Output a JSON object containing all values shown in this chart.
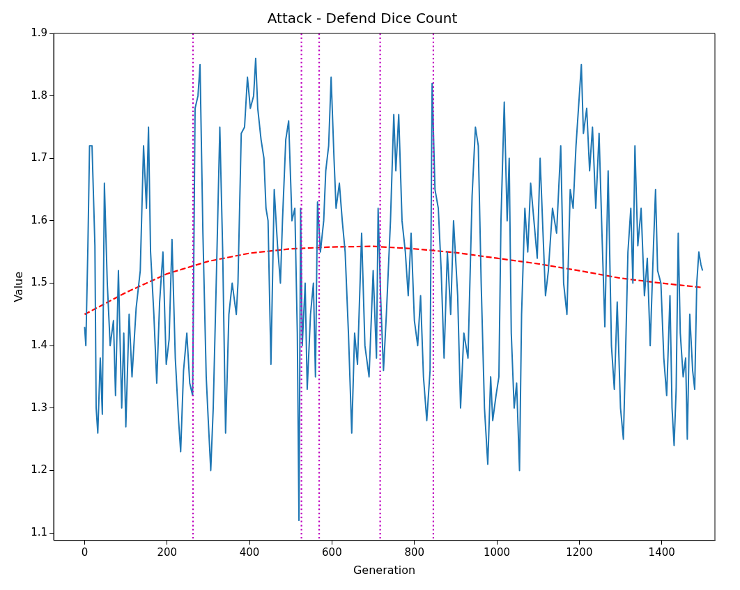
{
  "chart_data": {
    "type": "line",
    "title": "Attack - Defend Dice Count",
    "xlabel": "Generation",
    "ylabel": "Value",
    "xlim": [
      -75,
      1529
    ],
    "xticks": [
      0,
      200,
      400,
      600,
      800,
      1000,
      1200,
      1400
    ],
    "ylim": [
      1.088,
      1.9
    ],
    "yticks": [
      1.1,
      1.2,
      1.3,
      1.4,
      1.5,
      1.6,
      1.7,
      1.8,
      1.9
    ],
    "grid": false,
    "legend": false,
    "marker": "none",
    "series": [
      {
        "color": "#1f77b4",
        "line_style": "solid",
        "x": [
          0,
          3,
          8,
          12,
          18,
          25,
          28,
          32,
          38,
          43,
          48,
          55,
          62,
          70,
          75,
          82,
          90,
          95,
          100,
          108,
          115,
          125,
          135,
          143,
          150,
          155,
          160,
          168,
          175,
          182,
          190,
          198,
          205,
          212,
          220,
          228,
          233,
          240,
          248,
          255,
          262,
          268,
          275,
          280,
          287,
          295,
          300,
          306,
          312,
          320,
          328,
          335,
          342,
          350,
          358,
          368,
          372,
          380,
          388,
          395,
          402,
          410,
          415,
          420,
          428,
          435,
          440,
          445,
          452,
          460,
          468,
          475,
          480,
          488,
          495,
          503,
          510,
          516,
          520,
          524,
          528,
          535,
          540,
          548,
          555,
          560,
          565,
          572,
          580,
          585,
          592,
          598,
          605,
          610,
          618,
          625,
          632,
          640,
          648,
          655,
          662,
          672,
          680,
          690,
          700,
          708,
          712,
          718,
          725,
          732,
          742,
          750,
          755,
          762,
          770,
          778,
          785,
          792,
          800,
          808,
          815,
          822,
          830,
          838,
          843,
          850,
          858,
          865,
          872,
          880,
          888,
          895,
          905,
          912,
          920,
          930,
          940,
          948,
          955,
          962,
          970,
          978,
          985,
          990,
          998,
          1005,
          1010,
          1018,
          1025,
          1030,
          1035,
          1042,
          1048,
          1055,
          1060,
          1068,
          1075,
          1082,
          1090,
          1098,
          1105,
          1112,
          1118,
          1125,
          1135,
          1145,
          1155,
          1162,
          1170,
          1178,
          1185,
          1192,
          1200,
          1205,
          1210,
          1218,
          1225,
          1232,
          1240,
          1248,
          1255,
          1262,
          1270,
          1278,
          1285,
          1292,
          1300,
          1307,
          1312,
          1318,
          1325,
          1330,
          1335,
          1342,
          1350,
          1358,
          1365,
          1372,
          1380,
          1385,
          1390,
          1398,
          1405,
          1412,
          1420,
          1425,
          1430,
          1435,
          1440,
          1445,
          1452,
          1458,
          1462,
          1468,
          1475,
          1480,
          1485,
          1490,
          1495,
          1499
        ],
        "values": [
          1.43,
          1.4,
          1.56,
          1.72,
          1.72,
          1.56,
          1.3,
          1.26,
          1.38,
          1.29,
          1.66,
          1.5,
          1.4,
          1.44,
          1.32,
          1.52,
          1.3,
          1.42,
          1.27,
          1.45,
          1.35,
          1.46,
          1.52,
          1.72,
          1.62,
          1.75,
          1.55,
          1.45,
          1.34,
          1.47,
          1.55,
          1.37,
          1.41,
          1.57,
          1.38,
          1.28,
          1.23,
          1.36,
          1.42,
          1.34,
          1.32,
          1.78,
          1.8,
          1.85,
          1.58,
          1.35,
          1.28,
          1.2,
          1.3,
          1.52,
          1.75,
          1.55,
          1.26,
          1.45,
          1.5,
          1.45,
          1.5,
          1.74,
          1.75,
          1.83,
          1.78,
          1.8,
          1.86,
          1.78,
          1.73,
          1.7,
          1.62,
          1.6,
          1.37,
          1.65,
          1.56,
          1.5,
          1.6,
          1.73,
          1.76,
          1.6,
          1.62,
          1.42,
          1.12,
          1.62,
          1.4,
          1.5,
          1.33,
          1.45,
          1.5,
          1.35,
          1.63,
          1.55,
          1.6,
          1.68,
          1.72,
          1.83,
          1.7,
          1.62,
          1.66,
          1.6,
          1.55,
          1.42,
          1.26,
          1.42,
          1.37,
          1.58,
          1.4,
          1.35,
          1.52,
          1.38,
          1.62,
          1.48,
          1.36,
          1.45,
          1.6,
          1.77,
          1.68,
          1.77,
          1.6,
          1.55,
          1.48,
          1.58,
          1.44,
          1.4,
          1.48,
          1.35,
          1.28,
          1.36,
          1.82,
          1.65,
          1.62,
          1.52,
          1.38,
          1.55,
          1.45,
          1.6,
          1.48,
          1.3,
          1.42,
          1.38,
          1.64,
          1.75,
          1.72,
          1.5,
          1.3,
          1.21,
          1.35,
          1.28,
          1.32,
          1.35,
          1.6,
          1.79,
          1.6,
          1.7,
          1.42,
          1.3,
          1.34,
          1.2,
          1.45,
          1.62,
          1.55,
          1.66,
          1.6,
          1.54,
          1.7,
          1.58,
          1.48,
          1.52,
          1.62,
          1.58,
          1.72,
          1.5,
          1.45,
          1.65,
          1.62,
          1.72,
          1.8,
          1.85,
          1.74,
          1.78,
          1.68,
          1.75,
          1.62,
          1.74,
          1.58,
          1.43,
          1.68,
          1.4,
          1.33,
          1.47,
          1.3,
          1.25,
          1.38,
          1.55,
          1.62,
          1.5,
          1.72,
          1.56,
          1.62,
          1.48,
          1.54,
          1.4,
          1.56,
          1.65,
          1.52,
          1.5,
          1.38,
          1.32,
          1.48,
          1.3,
          1.24,
          1.33,
          1.58,
          1.42,
          1.35,
          1.38,
          1.25,
          1.45,
          1.36,
          1.33,
          1.5,
          1.55,
          1.53,
          1.52
        ]
      },
      {
        "color": "#ff0000",
        "line_style": "dashed",
        "x": [
          0,
          100,
          200,
          300,
          400,
          500,
          600,
          700,
          800,
          900,
          1000,
          1100,
          1200,
          1300,
          1400,
          1499
        ],
        "values": [
          1.45,
          1.485,
          1.515,
          1.535,
          1.548,
          1.555,
          1.558,
          1.559,
          1.555,
          1.549,
          1.54,
          1.531,
          1.52,
          1.508,
          1.5,
          1.493
        ]
      }
    ],
    "ref_lines": [
      {
        "axis": "x",
        "value": 263,
        "color": "#bf00bf",
        "line_style": "dotted"
      },
      {
        "axis": "x",
        "value": 526,
        "color": "#bf00bf",
        "line_style": "dotted"
      },
      {
        "axis": "x",
        "value": 569,
        "color": "#bf00bf",
        "line_style": "dotted"
      },
      {
        "axis": "x",
        "value": 717,
        "color": "#bf00bf",
        "line_style": "dotted"
      },
      {
        "axis": "x",
        "value": 846,
        "color": "#bf00bf",
        "line_style": "dotted"
      }
    ]
  }
}
